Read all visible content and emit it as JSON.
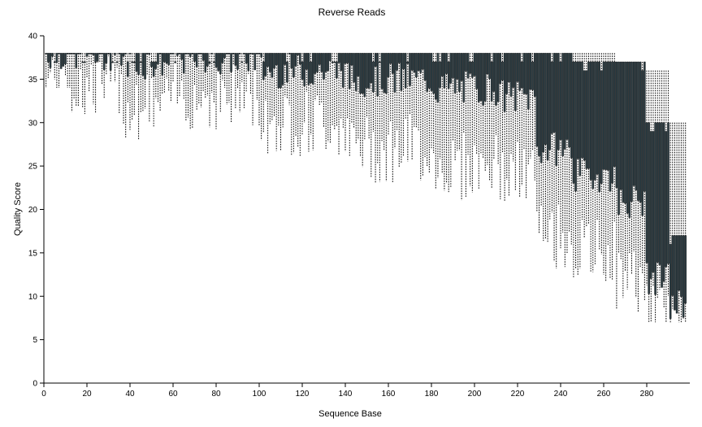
{
  "chart_data": {
    "type": "box",
    "title": "Reverse Reads",
    "xlabel": "Sequence Base",
    "ylabel": "Quality Score",
    "xlim": [
      0,
      300
    ],
    "ylim": [
      0,
      40
    ],
    "xticks": [
      "0",
      "20",
      "40",
      "60",
      "80",
      "100",
      "120",
      "140",
      "160",
      "180",
      "200",
      "220",
      "240",
      "260",
      "280"
    ],
    "yticks": [
      "0",
      "5",
      "10",
      "15",
      "20",
      "25",
      "30",
      "35",
      "40"
    ],
    "segments": [
      {
        "from": 1,
        "to": 12,
        "q1": 38,
        "q3": 38,
        "wlo": 35,
        "whi": 38,
        "wmin": 34
      },
      {
        "from": 13,
        "to": 36,
        "q1": 38,
        "q3": 38,
        "wlo": 34,
        "whi": 38,
        "wmin": 31
      },
      {
        "from": 37,
        "to": 60,
        "q1": 37,
        "q3": 38,
        "wlo": 32,
        "whi": 38,
        "wmin": 27
      },
      {
        "from": 61,
        "to": 100,
        "q1": 37.5,
        "q3": 38,
        "wlo": 33,
        "whi": 38,
        "wmin": 27
      },
      {
        "from": 101,
        "to": 140,
        "q1": 36,
        "q3": 38,
        "wlo": 30,
        "whi": 38,
        "wmin": 24
      },
      {
        "from": 141,
        "to": 180,
        "q1": 35,
        "q3": 38,
        "wlo": 27,
        "whi": 38,
        "wmin": 21
      },
      {
        "from": 181,
        "to": 210,
        "q1": 34,
        "q3": 38,
        "wlo": 25,
        "whi": 38,
        "wmin": 14
      },
      {
        "from": 211,
        "to": 228,
        "q1": 33,
        "q3": 38,
        "wlo": 24,
        "whi": 38,
        "wmin": 19
      },
      {
        "from": 229,
        "to": 245,
        "q1": 27,
        "q3": 38,
        "wlo": 17,
        "whi": 38,
        "wmin": 11
      },
      {
        "from": 246,
        "to": 265,
        "q1": 24,
        "q3": 37,
        "wlo": 15,
        "whi": 38,
        "wmin": 10
      },
      {
        "from": 266,
        "to": 279,
        "q1": 21,
        "q3": 37,
        "wlo": 12,
        "whi": 37,
        "wmin": 7
      },
      {
        "from": 280,
        "to": 290,
        "q1": 12,
        "q3": 30,
        "wlo": 8,
        "whi": 36,
        "wmin": 7
      },
      {
        "from": 291,
        "to": 298,
        "q1": 9,
        "q3": 17,
        "wlo": 7,
        "whi": 30,
        "wmin": 7
      }
    ]
  }
}
